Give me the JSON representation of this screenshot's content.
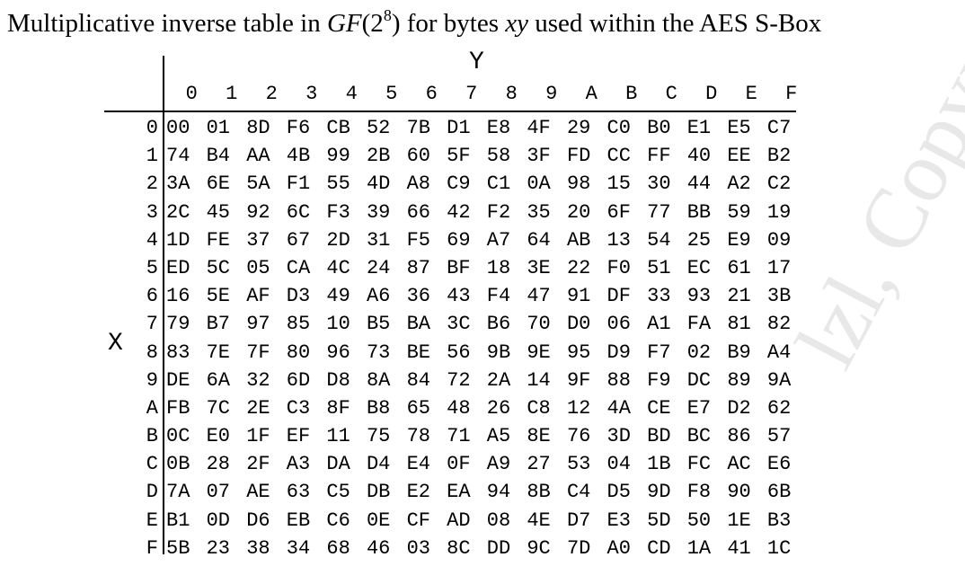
{
  "caption": {
    "prefix": "Multiplicative inverse table in ",
    "field_name": "GF",
    "field_open": "(2",
    "field_exp": "8",
    "field_close": ")",
    "middle": " for bytes ",
    "var": "xy",
    "suffix": " used within the AES S-Box"
  },
  "axis": {
    "y_label": "Y",
    "x_label": "X"
  },
  "columns": [
    "0",
    "1",
    "2",
    "3",
    "4",
    "5",
    "6",
    "7",
    "8",
    "9",
    "A",
    "B",
    "C",
    "D",
    "E",
    "F"
  ],
  "row_labels": [
    "0",
    "1",
    "2",
    "3",
    "4",
    "5",
    "6",
    "7",
    "8",
    "9",
    "A",
    "B",
    "C",
    "D",
    "E",
    "F"
  ],
  "rows": [
    [
      "00",
      "01",
      "8D",
      "F6",
      "CB",
      "52",
      "7B",
      "D1",
      "E8",
      "4F",
      "29",
      "C0",
      "B0",
      "E1",
      "E5",
      "C7"
    ],
    [
      "74",
      "B4",
      "AA",
      "4B",
      "99",
      "2B",
      "60",
      "5F",
      "58",
      "3F",
      "FD",
      "CC",
      "FF",
      "40",
      "EE",
      "B2"
    ],
    [
      "3A",
      "6E",
      "5A",
      "F1",
      "55",
      "4D",
      "A8",
      "C9",
      "C1",
      "0A",
      "98",
      "15",
      "30",
      "44",
      "A2",
      "C2"
    ],
    [
      "2C",
      "45",
      "92",
      "6C",
      "F3",
      "39",
      "66",
      "42",
      "F2",
      "35",
      "20",
      "6F",
      "77",
      "BB",
      "59",
      "19"
    ],
    [
      "1D",
      "FE",
      "37",
      "67",
      "2D",
      "31",
      "F5",
      "69",
      "A7",
      "64",
      "AB",
      "13",
      "54",
      "25",
      "E9",
      "09"
    ],
    [
      "ED",
      "5C",
      "05",
      "CA",
      "4C",
      "24",
      "87",
      "BF",
      "18",
      "3E",
      "22",
      "F0",
      "51",
      "EC",
      "61",
      "17"
    ],
    [
      "16",
      "5E",
      "AF",
      "D3",
      "49",
      "A6",
      "36",
      "43",
      "F4",
      "47",
      "91",
      "DF",
      "33",
      "93",
      "21",
      "3B"
    ],
    [
      "79",
      "B7",
      "97",
      "85",
      "10",
      "B5",
      "BA",
      "3C",
      "B6",
      "70",
      "D0",
      "06",
      "A1",
      "FA",
      "81",
      "82"
    ],
    [
      "83",
      "7E",
      "7F",
      "80",
      "96",
      "73",
      "BE",
      "56",
      "9B",
      "9E",
      "95",
      "D9",
      "F7",
      "02",
      "B9",
      "A4"
    ],
    [
      "DE",
      "6A",
      "32",
      "6D",
      "D8",
      "8A",
      "84",
      "72",
      "2A",
      "14",
      "9F",
      "88",
      "F9",
      "DC",
      "89",
      "9A"
    ],
    [
      "FB",
      "7C",
      "2E",
      "C3",
      "8F",
      "B8",
      "65",
      "48",
      "26",
      "C8",
      "12",
      "4A",
      "CE",
      "E7",
      "D2",
      "62"
    ],
    [
      "0C",
      "E0",
      "1F",
      "EF",
      "11",
      "75",
      "78",
      "71",
      "A5",
      "8E",
      "76",
      "3D",
      "BD",
      "BC",
      "86",
      "57"
    ],
    [
      "0B",
      "28",
      "2F",
      "A3",
      "DA",
      "D4",
      "E4",
      "0F",
      "A9",
      "27",
      "53",
      "04",
      "1B",
      "FC",
      "AC",
      "E6"
    ],
    [
      "7A",
      "07",
      "AE",
      "63",
      "C5",
      "DB",
      "E2",
      "EA",
      "94",
      "8B",
      "C4",
      "D5",
      "9D",
      "F8",
      "90",
      "6B"
    ],
    [
      "B1",
      "0D",
      "D6",
      "EB",
      "C6",
      "0E",
      "CF",
      "AD",
      "08",
      "4E",
      "D7",
      "E3",
      "5D",
      "50",
      "1E",
      "B3"
    ],
    [
      "5B",
      "23",
      "38",
      "34",
      "68",
      "46",
      "03",
      "8C",
      "DD",
      "9C",
      "7D",
      "A0",
      "CD",
      "1A",
      "41",
      "1C"
    ]
  ],
  "watermark": "lzl, Copyr"
}
